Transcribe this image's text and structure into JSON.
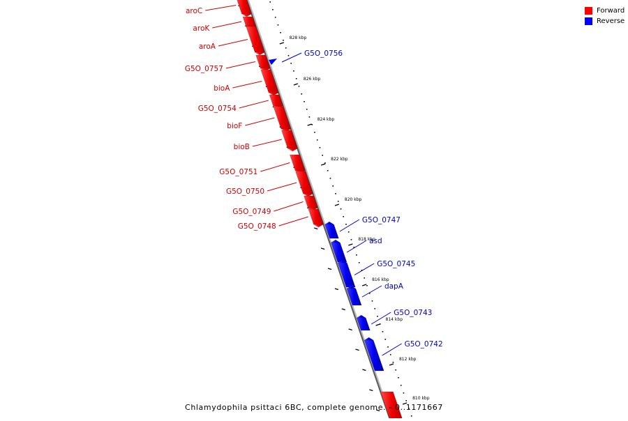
{
  "legend": {
    "forward_label": "Forward",
    "reverse_label": "Reverse",
    "forward_color": "#ff0000",
    "reverse_color": "#0000ff"
  },
  "caption": "Chlamydophila psittaci 6BC, complete genome. - 0..1171667",
  "genome": {
    "start": 0,
    "end": 1171667,
    "unit": "kbp"
  },
  "ticks": [
    "828 kbp",
    "826 kbp",
    "824 kbp",
    "822 kbp",
    "820 kbp",
    "818 kbp",
    "816 kbp",
    "814 kbp",
    "812 kbp",
    "810 kbp"
  ],
  "genes": [
    {
      "name": "aroC",
      "strand": "forward"
    },
    {
      "name": "aroK",
      "strand": "forward"
    },
    {
      "name": "aroA",
      "strand": "forward"
    },
    {
      "name": "G5O_0757",
      "strand": "forward"
    },
    {
      "name": "bioA",
      "strand": "forward"
    },
    {
      "name": "G5O_0754",
      "strand": "forward"
    },
    {
      "name": "bioF",
      "strand": "forward"
    },
    {
      "name": "bioB",
      "strand": "forward"
    },
    {
      "name": "G5O_0751",
      "strand": "forward"
    },
    {
      "name": "G5O_0750",
      "strand": "forward"
    },
    {
      "name": "G5O_0749",
      "strand": "forward"
    },
    {
      "name": "G5O_0748",
      "strand": "forward"
    },
    {
      "name": "G5O_0756",
      "strand": "reverse"
    },
    {
      "name": "G5O_0747",
      "strand": "reverse"
    },
    {
      "name": "asd",
      "strand": "reverse"
    },
    {
      "name": "G5O_0745",
      "strand": "reverse"
    },
    {
      "name": "dapA",
      "strand": "reverse"
    },
    {
      "name": "G5O_0743",
      "strand": "reverse"
    },
    {
      "name": "G5O_0742",
      "strand": "reverse"
    }
  ]
}
